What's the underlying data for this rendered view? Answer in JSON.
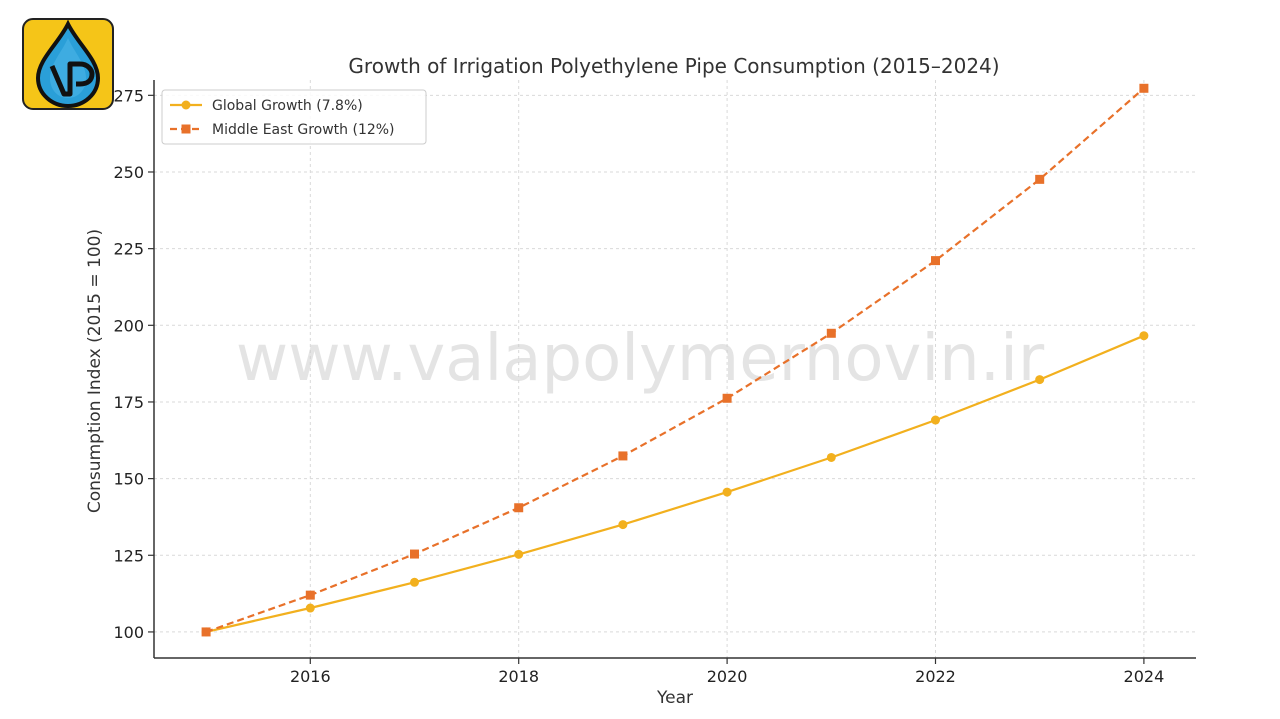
{
  "logo": {
    "text": "VP",
    "name": "Vala Polymer Novin logo"
  },
  "watermark": "www.valapolymernovin.ir",
  "chart_data": {
    "type": "line",
    "title": "Growth of Irrigation Polyethylene Pipe Consumption (2015–2024)",
    "xlabel": "Year",
    "ylabel": "Consumption Index (2015 = 100)",
    "x": [
      2015,
      2016,
      2017,
      2018,
      2019,
      2020,
      2021,
      2022,
      2023,
      2024
    ],
    "xticks": [
      2016,
      2018,
      2020,
      2022,
      2024
    ],
    "xlim": [
      2014.5,
      2024.5
    ],
    "ylim": [
      91.5,
      280
    ],
    "yticks": [
      100,
      125,
      150,
      175,
      200,
      225,
      250,
      275
    ],
    "grid": true,
    "legend_position": "top-left",
    "series": [
      {
        "name": "Global Growth (7.8%)",
        "values": [
          100,
          107.8,
          116.2,
          125.3,
          135.0,
          145.6,
          156.9,
          169.1,
          182.3,
          196.6
        ],
        "color": "#F2B01E",
        "style": "solid",
        "marker": "circle"
      },
      {
        "name": "Middle East Growth (12%)",
        "values": [
          100,
          112.0,
          125.4,
          140.5,
          157.4,
          176.2,
          197.4,
          221.1,
          247.6,
          277.3
        ],
        "color": "#E8712A",
        "style": "dashed",
        "marker": "square"
      }
    ]
  }
}
